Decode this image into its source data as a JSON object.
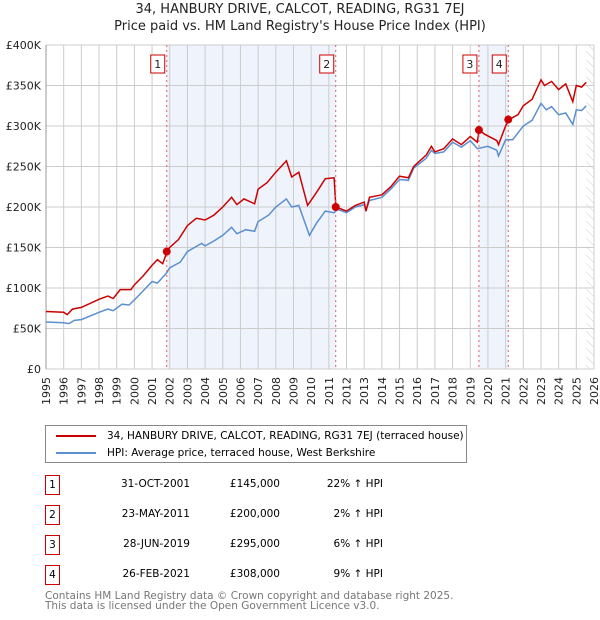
{
  "chart_data": {
    "type": "line",
    "title": "34, HANBURY DRIVE, CALCOT, READING, RG31 7EJ",
    "subtitle": "Price paid vs. HM Land Registry's House Price Index (HPI)",
    "xlim": [
      1995,
      2026
    ],
    "ylim": [
      0,
      400000
    ],
    "x_ticks": [
      "1995",
      "1996",
      "1997",
      "1998",
      "1999",
      "2000",
      "2001",
      "2002",
      "2003",
      "2004",
      "2005",
      "2006",
      "2007",
      "2008",
      "2009",
      "2010",
      "2011",
      "2012",
      "2013",
      "2014",
      "2015",
      "2016",
      "2017",
      "2018",
      "2019",
      "2020",
      "2021",
      "2022",
      "2023",
      "2024",
      "2025",
      "2026"
    ],
    "y_ticks": [
      {
        "v": 0,
        "l": "£0"
      },
      {
        "v": 50000,
        "l": "£50K"
      },
      {
        "v": 100000,
        "l": "£100K"
      },
      {
        "v": 150000,
        "l": "£150K"
      },
      {
        "v": 200000,
        "l": "£200K"
      },
      {
        "v": 250000,
        "l": "£250K"
      },
      {
        "v": 300000,
        "l": "£300K"
      },
      {
        "v": 350000,
        "l": "£350K"
      },
      {
        "v": 400000,
        "l": "£400K"
      }
    ],
    "grid": true,
    "shaded_ranges": [
      [
        2001.83,
        2011.39
      ],
      [
        2019.49,
        2021.15
      ]
    ],
    "forecast_from": 2025.56,
    "series": [
      {
        "name": "34, HANBURY DRIVE, CALCOT, READING, RG31 7EJ (terraced house)",
        "color": "#cc0000",
        "x": [
          1995,
          1996,
          1996.2,
          1996.5,
          1997,
          1998,
          1998.5,
          1998.8,
          1999.2,
          1999.8,
          2000,
          2000.5,
          2001,
          2001.3,
          2001.6,
          2001.9,
          2002,
          2002.5,
          2003,
          2003.5,
          2004,
          2004.5,
          2005,
          2005.5,
          2005.8,
          2006.2,
          2006.8,
          2007,
          2007.5,
          2008,
          2008.6,
          2008.9,
          2009.3,
          2009.8,
          2010.3,
          2010.8,
          2011.3,
          2011.4,
          2012,
          2012.5,
          2013,
          2013.1,
          2013.3,
          2014,
          2014.5,
          2015,
          2015.5,
          2015.8,
          2016.5,
          2016.8,
          2017,
          2017.5,
          2018,
          2018.5,
          2019,
          2019.4,
          2019.5,
          2019.8,
          2020.5,
          2020.6,
          2021,
          2021.2,
          2021.7,
          2022,
          2022.5,
          2023,
          2023.2,
          2023.6,
          2024,
          2024.4,
          2024.8,
          2025,
          2025.3,
          2025.56
        ],
        "y": [
          71000,
          70000,
          67000,
          74000,
          76000,
          86000,
          90000,
          87000,
          98000,
          98000,
          104000,
          115000,
          128000,
          135000,
          130000,
          148000,
          150000,
          160000,
          177000,
          186000,
          184000,
          190000,
          200000,
          212000,
          203000,
          210000,
          204000,
          222000,
          230000,
          243000,
          257000,
          237000,
          243000,
          202000,
          218000,
          235000,
          236000,
          200000,
          195000,
          202000,
          206000,
          195000,
          212000,
          215000,
          225000,
          238000,
          236000,
          250000,
          264000,
          275000,
          268000,
          272000,
          284000,
          277000,
          287000,
          280000,
          295000,
          290000,
          282000,
          277000,
          300000,
          308000,
          314000,
          325000,
          333000,
          357000,
          350000,
          355000,
          345000,
          352000,
          330000,
          350000,
          348000,
          354000
        ]
      },
      {
        "name": "HPI: Average price, terraced house, West Berkshire",
        "color": "#5b8fd0",
        "x": [
          1995,
          1996,
          1996.3,
          1996.6,
          1997,
          1998,
          1998.5,
          1998.8,
          1999.3,
          1999.7,
          2000.3,
          2001,
          2001.3,
          2001.8,
          2002,
          2002.6,
          2003,
          2003.8,
          2004,
          2004.5,
          2005,
          2005.5,
          2005.8,
          2006.3,
          2006.8,
          2007,
          2007.6,
          2008,
          2008.6,
          2008.9,
          2009.3,
          2009.9,
          2010.3,
          2010.8,
          2011.3,
          2011.5,
          2012,
          2012.5,
          2013,
          2013.1,
          2013.3,
          2014,
          2014.5,
          2015,
          2015.5,
          2015.8,
          2016.5,
          2016.8,
          2017,
          2017.5,
          2018,
          2018.5,
          2019,
          2019.4,
          2020,
          2020.5,
          2020.6,
          2021,
          2021.4,
          2022,
          2022.5,
          2023,
          2023.3,
          2023.6,
          2024,
          2024.4,
          2024.8,
          2025,
          2025.3,
          2025.56
        ],
        "y": [
          58000,
          57000,
          56000,
          60000,
          61000,
          70000,
          74000,
          72000,
          80000,
          79000,
          92000,
          108000,
          106000,
          118000,
          125000,
          132000,
          145000,
          155000,
          152000,
          158000,
          165000,
          175000,
          167000,
          172000,
          170000,
          182000,
          190000,
          200000,
          210000,
          200000,
          202000,
          165000,
          180000,
          195000,
          193000,
          197000,
          193000,
          200000,
          203000,
          196000,
          208000,
          212000,
          222000,
          234000,
          233000,
          248000,
          260000,
          270000,
          266000,
          268000,
          280000,
          274000,
          282000,
          272000,
          275000,
          270000,
          263000,
          283000,
          283000,
          300000,
          307000,
          328000,
          320000,
          324000,
          314000,
          316000,
          302000,
          320000,
          319000,
          325000
        ]
      }
    ],
    "sales": [
      {
        "label": "1",
        "x": 2001.83,
        "y": 145000,
        "date": "31-OCT-2001",
        "price": "£145,000",
        "hpi": "22% ↑ HPI"
      },
      {
        "label": "2",
        "x": 2011.39,
        "y": 200000,
        "date": "23-MAY-2011",
        "price": "£200,000",
        "hpi": "2% ↑ HPI"
      },
      {
        "label": "3",
        "x": 2019.49,
        "y": 295000,
        "date": "28-JUN-2019",
        "price": "£295,000",
        "hpi": "6% ↑ HPI"
      },
      {
        "label": "4",
        "x": 2021.15,
        "y": 308000,
        "date": "26-FEB-2021",
        "price": "£308,000",
        "hpi": "9% ↑ HPI"
      }
    ]
  },
  "footer": [
    "Contains HM Land Registry data © Crown copyright and database right 2025.",
    "This data is licensed under the Open Government Licence v3.0."
  ]
}
